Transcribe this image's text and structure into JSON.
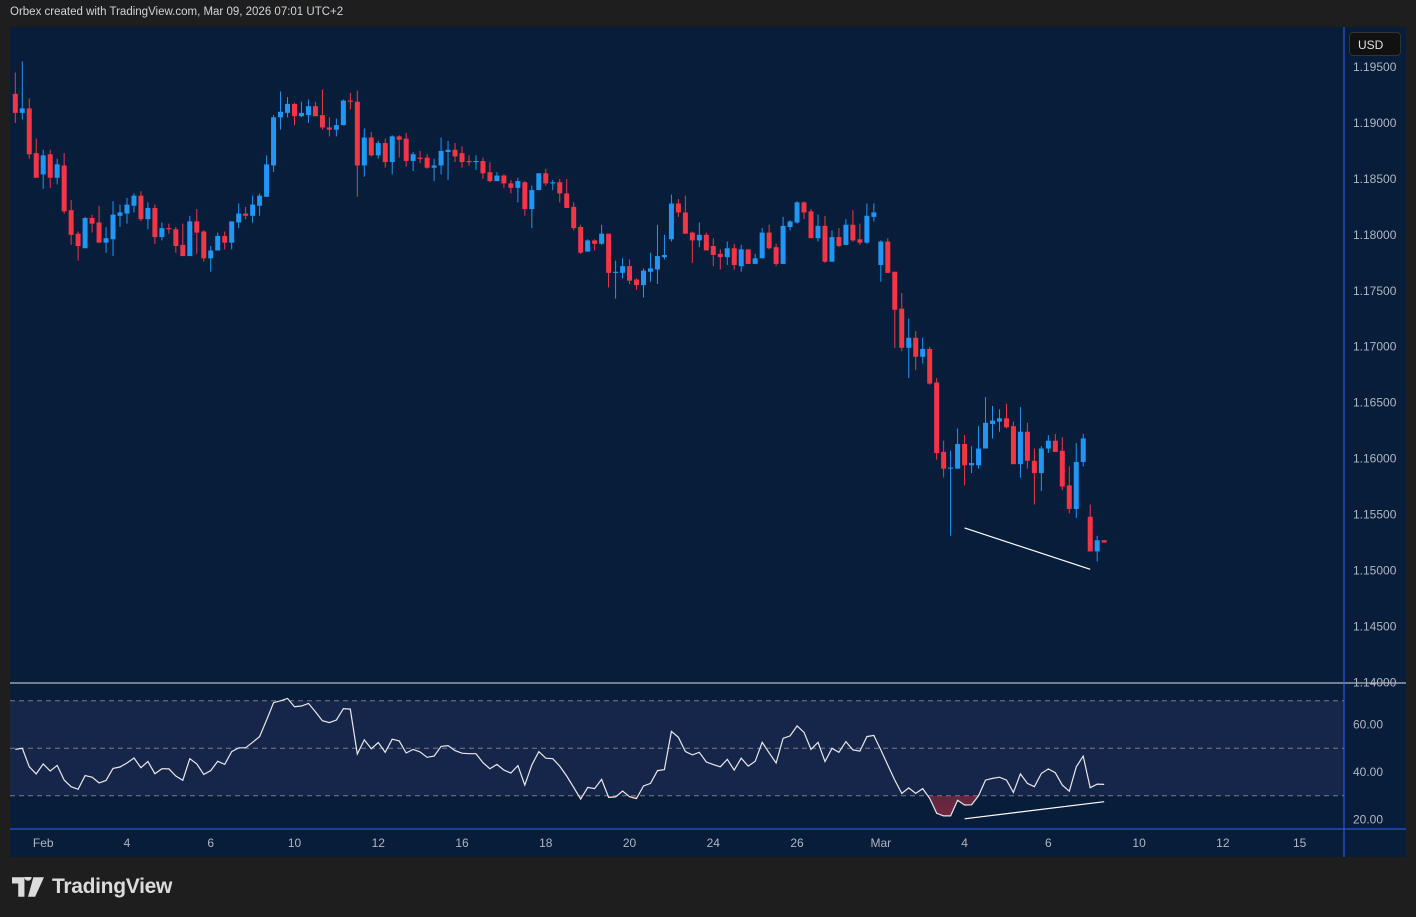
{
  "header": {
    "attribution": "Orbex created with TradingView.com, Mar 09, 2026 07:01 UTC+2"
  },
  "price_scale": {
    "currency_label": "USD"
  },
  "logo": {
    "text": "TradingView",
    "icon": "tradingview-logo-icon"
  },
  "colors": {
    "up": "#2196f3",
    "down": "#f23645",
    "background": "#081d3a",
    "rsi_line": "#e8e8e8",
    "rsi_band": "#16264a",
    "separator": "#2962ff"
  },
  "chart_data": [
    {
      "type": "candlestick",
      "pane": "price",
      "y_ticks": [
        "1.19500",
        "1.19000",
        "1.18500",
        "1.18000",
        "1.17500",
        "1.17000",
        "1.16500",
        "1.16000",
        "1.15500",
        "1.15000",
        "1.14500",
        "1.14000"
      ],
      "ylim": [
        1.14,
        1.196
      ],
      "x_ticks": [
        {
          "label": "Feb",
          "bar": 5
        },
        {
          "label": "4",
          "bar": 17
        },
        {
          "label": "6",
          "bar": 29
        },
        {
          "label": "10",
          "bar": 41
        },
        {
          "label": "12",
          "bar": 53
        },
        {
          "label": "16",
          "bar": 65
        },
        {
          "label": "18",
          "bar": 77
        },
        {
          "label": "20",
          "bar": 89
        },
        {
          "label": "24",
          "bar": 101
        },
        {
          "label": "26",
          "bar": 113
        },
        {
          "label": "Mar",
          "bar": 125
        },
        {
          "label": "4",
          "bar": 137
        },
        {
          "label": "6",
          "bar": 149
        },
        {
          "label": "10",
          "bar": 162
        },
        {
          "label": "12",
          "bar": 174
        },
        {
          "label": "15",
          "bar": 185
        }
      ],
      "ohlc": [
        [
          1.1926,
          1.1945,
          1.19,
          1.1909
        ],
        [
          1.1909,
          1.1955,
          1.1903,
          1.1913
        ],
        [
          1.1913,
          1.1922,
          1.1868,
          1.1872
        ],
        [
          1.1873,
          1.1886,
          1.1851,
          1.1851
        ],
        [
          1.1854,
          1.1876,
          1.1841,
          1.1871
        ],
        [
          1.1872,
          1.1876,
          1.1842,
          1.1851
        ],
        [
          1.1851,
          1.1868,
          1.1845,
          1.1863
        ],
        [
          1.1862,
          1.1873,
          1.1819,
          1.1821
        ],
        [
          1.1822,
          1.1831,
          1.1791,
          1.18
        ],
        [
          1.1801,
          1.1803,
          1.1777,
          1.179
        ],
        [
          1.1788,
          1.1816,
          1.1788,
          1.1815
        ],
        [
          1.1815,
          1.1818,
          1.1802,
          1.181
        ],
        [
          1.1811,
          1.1826,
          1.1793,
          1.1793
        ],
        [
          1.1793,
          1.1807,
          1.1784,
          1.1797
        ],
        [
          1.1796,
          1.183,
          1.1781,
          1.1818
        ],
        [
          1.1817,
          1.1827,
          1.1807,
          1.182
        ],
        [
          1.1819,
          1.1833,
          1.181,
          1.1827
        ],
        [
          1.1826,
          1.1837,
          1.182,
          1.1835
        ],
        [
          1.1835,
          1.1839,
          1.1812,
          1.1814
        ],
        [
          1.1814,
          1.1829,
          1.1805,
          1.1824
        ],
        [
          1.1824,
          1.1827,
          1.1792,
          1.1798
        ],
        [
          1.1798,
          1.1811,
          1.1795,
          1.1806
        ],
        [
          1.1806,
          1.181,
          1.1801,
          1.1805
        ],
        [
          1.1805,
          1.1807,
          1.1784,
          1.179
        ],
        [
          1.1791,
          1.181,
          1.1781,
          1.1781
        ],
        [
          1.1781,
          1.1817,
          1.1781,
          1.1812
        ],
        [
          1.1812,
          1.1823,
          1.1783,
          1.1802
        ],
        [
          1.1803,
          1.1804,
          1.1776,
          1.1779
        ],
        [
          1.1779,
          1.179,
          1.1767,
          1.1786
        ],
        [
          1.1786,
          1.1802,
          1.1786,
          1.1799
        ],
        [
          1.1799,
          1.1803,
          1.1787,
          1.1793
        ],
        [
          1.1793,
          1.1812,
          1.1787,
          1.1812
        ],
        [
          1.1811,
          1.1828,
          1.1806,
          1.1819
        ],
        [
          1.1819,
          1.1825,
          1.1814,
          1.1817
        ],
        [
          1.1817,
          1.1835,
          1.1811,
          1.1827
        ],
        [
          1.1826,
          1.1837,
          1.1817,
          1.1835
        ],
        [
          1.1834,
          1.1871,
          1.1834,
          1.1863
        ],
        [
          1.1862,
          1.1907,
          1.1856,
          1.1905
        ],
        [
          1.1905,
          1.1928,
          1.1894,
          1.191
        ],
        [
          1.1909,
          1.1923,
          1.1905,
          1.1917
        ],
        [
          1.1917,
          1.1918,
          1.1898,
          1.1906
        ],
        [
          1.1906,
          1.1919,
          1.1905,
          1.1909
        ],
        [
          1.1907,
          1.1921,
          1.19,
          1.1915
        ],
        [
          1.1915,
          1.1919,
          1.1906,
          1.1906
        ],
        [
          1.1907,
          1.193,
          1.1894,
          1.1896
        ],
        [
          1.1896,
          1.1905,
          1.1888,
          1.1894
        ],
        [
          1.1894,
          1.1904,
          1.1888,
          1.1898
        ],
        [
          1.1898,
          1.1921,
          1.1898,
          1.192
        ],
        [
          1.192,
          1.1927,
          1.1912,
          1.1919
        ],
        [
          1.1919,
          1.1929,
          1.1834,
          1.1862
        ],
        [
          1.1862,
          1.1895,
          1.1852,
          1.1887
        ],
        [
          1.1887,
          1.1892,
          1.187,
          1.1871
        ],
        [
          1.1871,
          1.1884,
          1.1868,
          1.1882
        ],
        [
          1.1882,
          1.1886,
          1.186,
          1.1865
        ],
        [
          1.1865,
          1.1889,
          1.1854,
          1.1888
        ],
        [
          1.1888,
          1.1889,
          1.1869,
          1.1885
        ],
        [
          1.1886,
          1.1891,
          1.1861,
          1.1866
        ],
        [
          1.1866,
          1.1874,
          1.1857,
          1.1872
        ],
        [
          1.1869,
          1.1875,
          1.1864,
          1.1868
        ],
        [
          1.1869,
          1.1872,
          1.1859,
          1.186
        ],
        [
          1.186,
          1.1868,
          1.1848,
          1.1862
        ],
        [
          1.1862,
          1.1887,
          1.1854,
          1.1875
        ],
        [
          1.1874,
          1.1884,
          1.1849,
          1.1876
        ],
        [
          1.1876,
          1.1882,
          1.1865,
          1.187
        ],
        [
          1.1873,
          1.1879,
          1.186,
          1.1865
        ],
        [
          1.1866,
          1.1871,
          1.1862,
          1.1865
        ],
        [
          1.1865,
          1.1871,
          1.1858,
          1.1866
        ],
        [
          1.1866,
          1.1869,
          1.185,
          1.1855
        ],
        [
          1.1856,
          1.1865,
          1.1847,
          1.1848
        ],
        [
          1.1848,
          1.1856,
          1.1848,
          1.1853
        ],
        [
          1.1853,
          1.1854,
          1.1842,
          1.1846
        ],
        [
          1.1846,
          1.1849,
          1.1837,
          1.1842
        ],
        [
          1.1842,
          1.1851,
          1.1829,
          1.1848
        ],
        [
          1.1847,
          1.1848,
          1.1817,
          1.1823
        ],
        [
          1.1823,
          1.1844,
          1.1806,
          1.184
        ],
        [
          1.184,
          1.1855,
          1.184,
          1.1855
        ],
        [
          1.1855,
          1.1859,
          1.1844,
          1.1846
        ],
        [
          1.1847,
          1.1849,
          1.184,
          1.1847
        ],
        [
          1.1847,
          1.185,
          1.1829,
          1.1837
        ],
        [
          1.1837,
          1.185,
          1.1824,
          1.1824
        ],
        [
          1.1825,
          1.1829,
          1.1804,
          1.1806
        ],
        [
          1.1807,
          1.1809,
          1.1783,
          1.1784
        ],
        [
          1.1785,
          1.1796,
          1.1785,
          1.1795
        ],
        [
          1.1795,
          1.1796,
          1.1786,
          1.1792
        ],
        [
          1.1792,
          1.1809,
          1.1791,
          1.1801
        ],
        [
          1.1801,
          1.1801,
          1.1753,
          1.1766
        ],
        [
          1.1766,
          1.1777,
          1.1743,
          1.1767
        ],
        [
          1.1766,
          1.1779,
          1.1761,
          1.1772
        ],
        [
          1.1772,
          1.1778,
          1.1756,
          1.1759
        ],
        [
          1.176,
          1.1761,
          1.1751,
          1.1755
        ],
        [
          1.1755,
          1.177,
          1.1744,
          1.1768
        ],
        [
          1.1767,
          1.1784,
          1.1758,
          1.177
        ],
        [
          1.1769,
          1.1809,
          1.1756,
          1.1781
        ],
        [
          1.178,
          1.18,
          1.1778,
          1.1782
        ],
        [
          1.1796,
          1.1836,
          1.1794,
          1.1828
        ],
        [
          1.1828,
          1.1832,
          1.1816,
          1.182
        ],
        [
          1.182,
          1.1835,
          1.1801,
          1.1801
        ],
        [
          1.1802,
          1.1803,
          1.1775,
          1.1795
        ],
        [
          1.1795,
          1.1811,
          1.1789,
          1.18
        ],
        [
          1.18,
          1.1802,
          1.1786,
          1.1786
        ],
        [
          1.179,
          1.1797,
          1.1772,
          1.1782
        ],
        [
          1.1783,
          1.1787,
          1.1769,
          1.178
        ],
        [
          1.178,
          1.1794,
          1.1773,
          1.1788
        ],
        [
          1.1788,
          1.1792,
          1.1769,
          1.1773
        ],
        [
          1.1772,
          1.1791,
          1.1767,
          1.1787
        ],
        [
          1.1787,
          1.1787,
          1.1774,
          1.1774
        ],
        [
          1.1774,
          1.1783,
          1.1774,
          1.1779
        ],
        [
          1.1779,
          1.1806,
          1.1779,
          1.1802
        ],
        [
          1.1802,
          1.1809,
          1.1787,
          1.1788
        ],
        [
          1.1789,
          1.1792,
          1.1772,
          1.1774
        ],
        [
          1.1774,
          1.1816,
          1.1774,
          1.1808
        ],
        [
          1.1807,
          1.1813,
          1.1804,
          1.1812
        ],
        [
          1.1811,
          1.183,
          1.181,
          1.1829
        ],
        [
          1.1829,
          1.183,
          1.1814,
          1.182
        ],
        [
          1.1821,
          1.1823,
          1.1797,
          1.1797
        ],
        [
          1.1797,
          1.1818,
          1.1794,
          1.1808
        ],
        [
          1.1808,
          1.1817,
          1.1775,
          1.1776
        ],
        [
          1.1776,
          1.1804,
          1.1776,
          1.1798
        ],
        [
          1.1798,
          1.1806,
          1.1789,
          1.179
        ],
        [
          1.1791,
          1.1814,
          1.1791,
          1.1809
        ],
        [
          1.1809,
          1.1822,
          1.1794,
          1.1795
        ],
        [
          1.1796,
          1.181,
          1.1791,
          1.1793
        ],
        [
          1.1793,
          1.1828,
          1.1792,
          1.1817
        ],
        [
          1.1816,
          1.1828,
          1.1812,
          1.182
        ],
        [
          1.1773,
          1.1795,
          1.1758,
          1.1794
        ],
        [
          1.1794,
          1.1797,
          1.1766,
          1.1766
        ],
        [
          1.1767,
          1.1767,
          1.1699,
          1.1733
        ],
        [
          1.1734,
          1.1748,
          1.1696,
          1.1699
        ],
        [
          1.1699,
          1.1725,
          1.1672,
          1.1708
        ],
        [
          1.1708,
          1.1714,
          1.1679,
          1.1691
        ],
        [
          1.1691,
          1.1708,
          1.1685,
          1.1698
        ],
        [
          1.1698,
          1.17,
          1.1666,
          1.1667
        ],
        [
          1.1668,
          1.1672,
          1.1599,
          1.1605
        ],
        [
          1.1606,
          1.1616,
          1.1583,
          1.1591
        ],
        [
          1.1591,
          1.1607,
          1.1531,
          1.1592
        ],
        [
          1.1591,
          1.1627,
          1.1591,
          1.1613
        ],
        [
          1.1613,
          1.1621,
          1.1576,
          1.1594
        ],
        [
          1.1594,
          1.1611,
          1.1587,
          1.1596
        ],
        [
          1.1594,
          1.1629,
          1.1591,
          1.1609
        ],
        [
          1.1609,
          1.1655,
          1.1609,
          1.1632
        ],
        [
          1.1631,
          1.1647,
          1.1618,
          1.1634
        ],
        [
          1.1633,
          1.1644,
          1.1624,
          1.1636
        ],
        [
          1.1636,
          1.1649,
          1.1627,
          1.1628
        ],
        [
          1.1629,
          1.1633,
          1.1595,
          1.1595
        ],
        [
          1.1595,
          1.1646,
          1.1583,
          1.1624
        ],
        [
          1.1624,
          1.1632,
          1.1591,
          1.1598
        ],
        [
          1.1598,
          1.1609,
          1.1559,
          1.1587
        ],
        [
          1.1587,
          1.1611,
          1.1571,
          1.1609
        ],
        [
          1.1609,
          1.1621,
          1.1605,
          1.1616
        ],
        [
          1.1616,
          1.1622,
          1.1606,
          1.1606
        ],
        [
          1.1607,
          1.1619,
          1.1572,
          1.1575
        ],
        [
          1.1576,
          1.1593,
          1.1551,
          1.1555
        ],
        [
          1.1555,
          1.1614,
          1.1547,
          1.1597
        ],
        [
          1.1597,
          1.1622,
          1.1593,
          1.1618
        ],
        [
          1.1548,
          1.1559,
          1.1517,
          1.1517
        ],
        [
          1.1517,
          1.1531,
          1.1508,
          1.1527
        ],
        [
          1.1527,
          1.1527,
          1.1525,
          1.1525
        ]
      ],
      "annotations": [
        {
          "type": "trendline",
          "from": {
            "bar": 137,
            "price": 1.1538
          },
          "to": {
            "bar": 155,
            "price": 1.1501
          },
          "color": "#ffffff"
        }
      ]
    },
    {
      "type": "line",
      "pane": "rsi",
      "y_ticks": [
        "60.00",
        "40.00",
        "20.00"
      ],
      "ylim": [
        16,
        78
      ],
      "levels": {
        "upper": 70,
        "middle": 50,
        "lower": 30
      },
      "values": [
        49.5,
        50.0,
        42.2,
        39.2,
        43.4,
        40.4,
        42.8,
        36.6,
        33.8,
        32.7,
        38.5,
        37.8,
        35.4,
        36.4,
        41.5,
        42.1,
        43.8,
        45.9,
        41.8,
        44.4,
        39.3,
        41.4,
        41.3,
        38.3,
        36.5,
        45.6,
        43.4,
        39.0,
        40.6,
        44.5,
        43.2,
        48.6,
        50.2,
        50.2,
        52.5,
        54.9,
        61.9,
        69.2,
        70.0,
        71.0,
        67.5,
        67.8,
        68.9,
        65.4,
        61.6,
        60.8,
        61.9,
        66.7,
        66.5,
        47.6,
        53.5,
        49.8,
        52.4,
        48.3,
        53.8,
        53.1,
        48.0,
        49.5,
        48.4,
        46.2,
        46.7,
        50.8,
        51.1,
        49.0,
        47.9,
        47.7,
        47.7,
        43.9,
        41.4,
        43.2,
        40.8,
        39.6,
        42.7,
        34.5,
        42.9,
        48.6,
        45.8,
        45.6,
        42.5,
        38.3,
        33.5,
        28.6,
        33.5,
        33.0,
        36.9,
        29.3,
        29.5,
        32.0,
        29.6,
        28.8,
        34.1,
        35.2,
        40.6,
        41.0,
        57.1,
        54.6,
        48.6,
        47.2,
        48.3,
        44.2,
        43.1,
        42.2,
        45.3,
        40.8,
        45.8,
        42.5,
        44.5,
        52.5,
        48.1,
        43.8,
        54.2,
        55.2,
        59.4,
        56.7,
        49.5,
        52.5,
        44.4,
        50.0,
        48.3,
        52.8,
        49.3,
        48.8,
        54.9,
        55.4,
        49.3,
        42.9,
        36.6,
        31.0,
        33.3,
        31.0,
        33.0,
        28.9,
        22.6,
        21.5,
        21.5,
        28.1,
        26.1,
        26.2,
        30.0,
        36.6,
        37.3,
        37.8,
        36.6,
        31.4,
        39.2,
        35.2,
        33.8,
        39.4,
        41.3,
        39.7,
        34.5,
        31.9,
        42.2,
        46.7,
        33.4,
        34.9,
        34.8
      ],
      "annotations": [
        {
          "type": "trendline",
          "from": {
            "bar": 137,
            "value": 20.3
          },
          "to": {
            "bar": 157,
            "value": 27.5
          },
          "color": "#ffffff"
        }
      ]
    }
  ]
}
